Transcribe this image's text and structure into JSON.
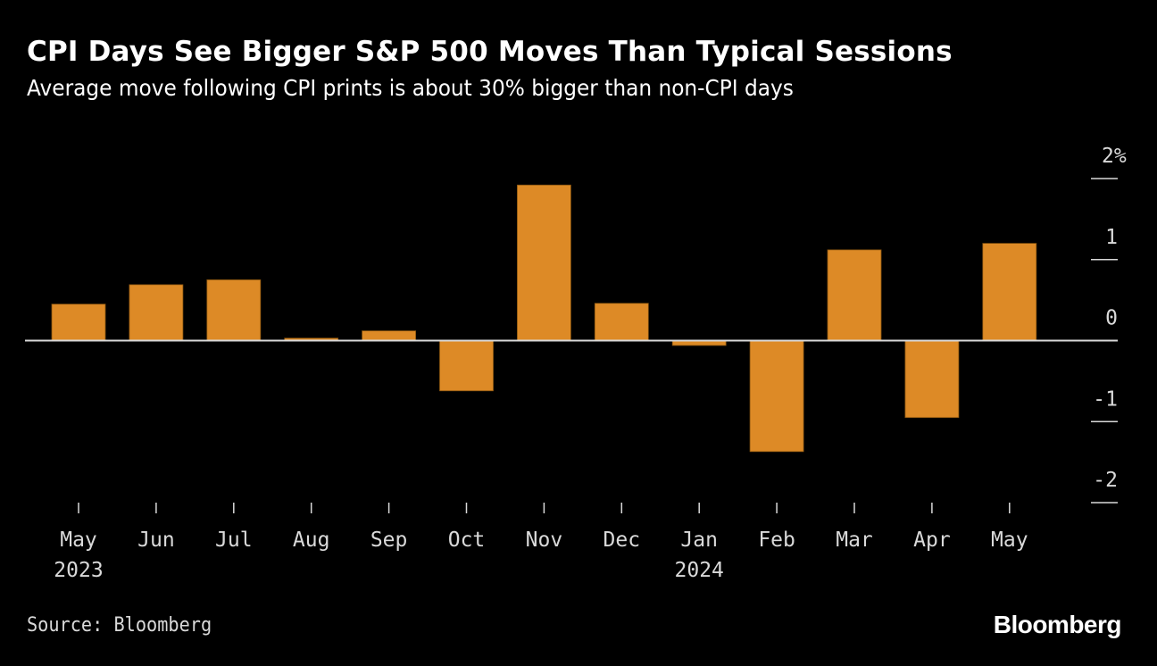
{
  "header": {
    "title": "CPI Days See Bigger S&P 500 Moves Than Typical Sessions",
    "subtitle": "Average move following CPI prints is about 30% bigger than non-CPI days"
  },
  "footer": {
    "source": "Source: Bloomberg",
    "brand": "Bloomberg"
  },
  "colors": {
    "bar": "#dd8a26",
    "bar_edge": "#8a5510",
    "axis": "#d9d9d9",
    "background": "#000000"
  },
  "chart_data": {
    "type": "bar",
    "title": "CPI Days See Bigger S&P 500 Moves Than Typical Sessions",
    "subtitle": "Average move following CPI prints is about 30% bigger than non-CPI days",
    "categories": [
      "May",
      "Jun",
      "Jul",
      "Aug",
      "Sep",
      "Oct",
      "Nov",
      "Dec",
      "Jan",
      "Feb",
      "Mar",
      "Apr",
      "May"
    ],
    "year_labels": [
      {
        "index": 0,
        "label": "2023"
      },
      {
        "index": 8,
        "label": "2024"
      }
    ],
    "values": [
      0.45,
      0.69,
      0.75,
      0.03,
      0.12,
      -0.62,
      1.92,
      0.46,
      -0.06,
      -1.37,
      1.12,
      -0.95,
      1.2
    ],
    "unit": "%",
    "xlabel": "",
    "ylabel": "",
    "ylim": [
      -2,
      2
    ],
    "yticks": [
      2,
      1,
      0,
      -1,
      -2
    ],
    "ytick_labels": [
      "2%",
      "1",
      "0",
      "-1",
      "-2"
    ],
    "y_axis_side": "right",
    "grid": false,
    "legend": "none",
    "source": "Source: Bloomberg"
  }
}
